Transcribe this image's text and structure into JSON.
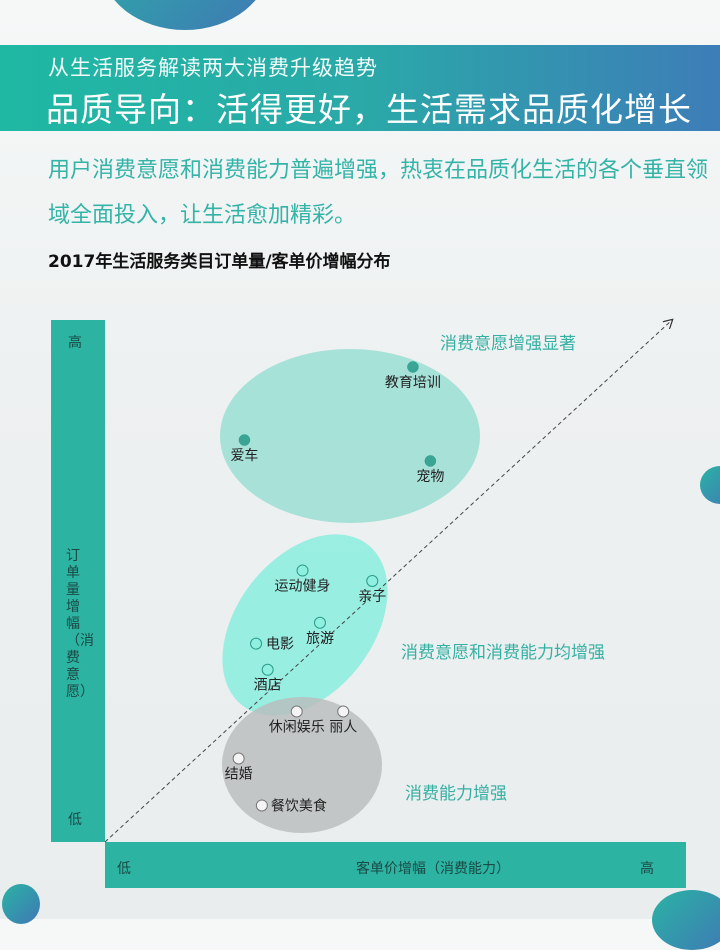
{
  "header": {
    "subtitle": "从生活服务解读两大消费升级趋势",
    "headline": "品质导向：活得更好，生活需求品质化增长"
  },
  "intro": "用户消费意愿和消费能力普遍增强，热衷在品质化生活的各个垂直领域全面投入，让生活愈加精彩。",
  "colors": {
    "banner_start": "#1fb8a3",
    "banner_end": "#3d7db8",
    "axis_bar": "#2db3a2",
    "accent_text": "#35b0a3"
  },
  "chart_data": {
    "type": "scatter",
    "title": "2017年生活服务类目订单量/客单价增幅分布",
    "xlabel": "客单价增幅（消费能力）",
    "ylabel": "订单量增幅（消费意愿）",
    "x_ticks": [
      "低",
      "高"
    ],
    "y_ticks": [
      "低",
      "高"
    ],
    "xlim": [
      0,
      100
    ],
    "ylim": [
      0,
      100
    ],
    "grid": false,
    "trend_arrow": true,
    "groups": [
      {
        "label": "消费意愿增强显著",
        "color": "#8fdcd0",
        "point_color": "#3aa595",
        "points": [
          {
            "name": "教育培训",
            "x": 53,
            "y": 91
          },
          {
            "name": "爱车",
            "x": 24,
            "y": 77
          },
          {
            "name": "宠物",
            "x": 56,
            "y": 73
          }
        ]
      },
      {
        "label": "消费意愿和消费能力均增强",
        "color": "#7eeedd",
        "point_color": "#8ff0df",
        "points": [
          {
            "name": "运动健身",
            "x": 34,
            "y": 52
          },
          {
            "name": "亲子",
            "x": 46,
            "y": 50
          },
          {
            "name": "电影",
            "x": 26,
            "y": 38
          },
          {
            "name": "旅游",
            "x": 37,
            "y": 42
          },
          {
            "name": "酒店",
            "x": 28,
            "y": 33
          }
        ]
      },
      {
        "label": "消费能力增强",
        "color": "#b9bcbc",
        "point_color": "#f4f4f4",
        "points": [
          {
            "name": "休闲娱乐",
            "x": 33,
            "y": 25
          },
          {
            "name": "丽人",
            "x": 41,
            "y": 25
          },
          {
            "name": "结婚",
            "x": 23,
            "y": 16
          },
          {
            "name": "餐饮美食",
            "x": 27,
            "y": 7
          }
        ]
      }
    ]
  }
}
